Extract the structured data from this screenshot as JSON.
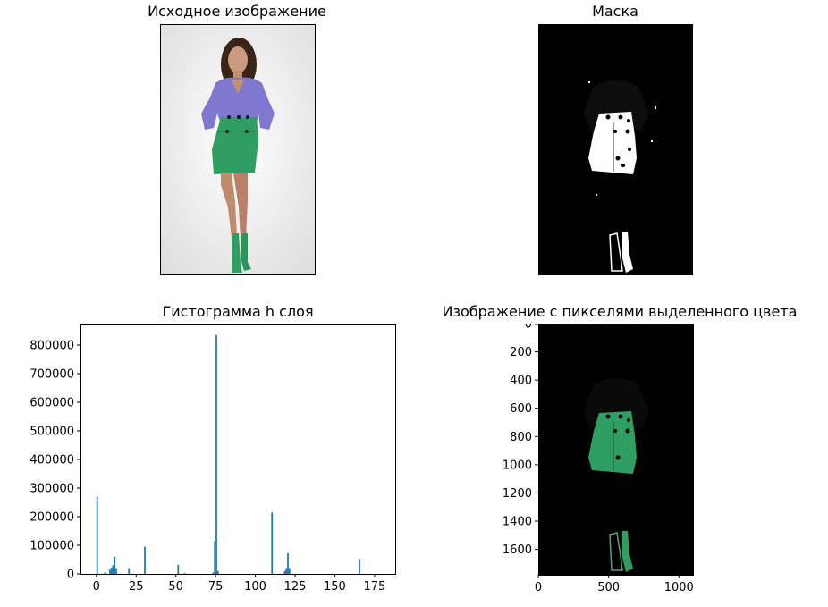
{
  "panels": {
    "original": {
      "title": "Исходное изображение"
    },
    "mask": {
      "title": "Маска"
    },
    "histogram": {
      "title": "Гистограмма h слоя"
    },
    "masked": {
      "title": "Изображение с пикселями выделенного цвета"
    }
  },
  "colors": {
    "bar": "#1f77b4",
    "skirt_green": "#2e9e62",
    "blouse_purple": "#7e78d0",
    "photo_background": "#eeeeee",
    "mask_black": "#000000",
    "mask_white": "#ffffff"
  },
  "chart_data": [
    {
      "type": "bar",
      "title": "Гистограмма h слоя",
      "xlabel": "",
      "ylabel": "",
      "xlim": [
        -10,
        188
      ],
      "ylim": [
        0,
        875000
      ],
      "xticks": [
        0,
        25,
        50,
        75,
        100,
        125,
        150,
        175
      ],
      "yticks": [
        0,
        100000,
        200000,
        300000,
        400000,
        500000,
        600000,
        700000,
        800000
      ],
      "bin_width": 1,
      "bins": [
        {
          "x": 0,
          "value": 270000
        },
        {
          "x": 5,
          "value": 5000
        },
        {
          "x": 8,
          "value": 15000
        },
        {
          "x": 9,
          "value": 22000
        },
        {
          "x": 10,
          "value": 30000
        },
        {
          "x": 11,
          "value": 60000
        },
        {
          "x": 12,
          "value": 20000
        },
        {
          "x": 20,
          "value": 20000
        },
        {
          "x": 30,
          "value": 95000
        },
        {
          "x": 51,
          "value": 32000
        },
        {
          "x": 55,
          "value": 3000
        },
        {
          "x": 73,
          "value": 5000
        },
        {
          "x": 74,
          "value": 115000
        },
        {
          "x": 75,
          "value": 835000
        },
        {
          "x": 76,
          "value": 10000
        },
        {
          "x": 110,
          "value": 215000
        },
        {
          "x": 118,
          "value": 10000
        },
        {
          "x": 119,
          "value": 20000
        },
        {
          "x": 120,
          "value": 72000
        },
        {
          "x": 121,
          "value": 20000
        },
        {
          "x": 165,
          "value": 52000
        }
      ]
    },
    {
      "type": "image",
      "title": "Изображение с пикселями выделенного цвета",
      "xlim": [
        0,
        1100
      ],
      "ylim": [
        1780,
        0
      ],
      "xticks": [
        0,
        500,
        1000
      ],
      "yticks": [
        0,
        200,
        400,
        600,
        800,
        1000,
        1200,
        1400,
        1600
      ]
    }
  ]
}
